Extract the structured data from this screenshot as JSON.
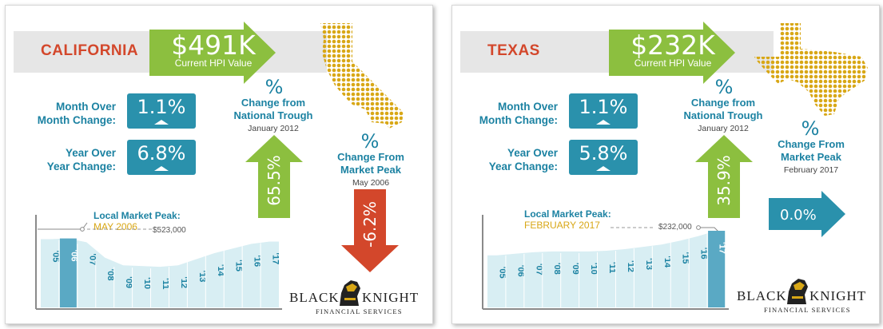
{
  "panels": [
    {
      "state": "CALIFORNIA",
      "hpi_value": "$491K",
      "hpi_label": "Current HPI Value",
      "mom_label_1": "Month Over",
      "mom_label_2": "Month Change:",
      "mom_value": "1.1%",
      "yoy_label_1": "Year Over",
      "yoy_label_2": "Year Change:",
      "yoy_value": "6.8%",
      "trough_symbol": "%",
      "trough_head_1": "Change from",
      "trough_head_2": "National Trough",
      "trough_date": "January 2012",
      "trough_value": "65.5%",
      "peak_symbol": "%",
      "peak_head_1": "Change From",
      "peak_head_2": "Market Peak",
      "peak_date": "May 2006",
      "peak_value": "-6.2%",
      "local_peak_title": "Local Market Peak:",
      "local_peak_date": "MAY 2006",
      "local_peak_value": "$523,000",
      "years": [
        "'05",
        "'06",
        "'07",
        "'08",
        "'09",
        "'10",
        "'11",
        "'12",
        "'13",
        "'14",
        "'15",
        "'16",
        "'17"
      ],
      "relative_levels": [
        0.89,
        0.9,
        0.85,
        0.65,
        0.55,
        0.54,
        0.53,
        0.55,
        0.63,
        0.71,
        0.77,
        0.83,
        0.86
      ],
      "highlight_index": 1,
      "logo_text_a": "BLACK",
      "logo_text_b": "KNIGHT",
      "logo_sub": "FINANCIAL SERVICES"
    },
    {
      "state": "TEXAS",
      "hpi_value": "$232K",
      "hpi_label": "Current HPI Value",
      "mom_label_1": "Month Over",
      "mom_label_2": "Month Change:",
      "mom_value": "1.1%",
      "yoy_label_1": "Year Over",
      "yoy_label_2": "Year Change:",
      "yoy_value": "5.8%",
      "trough_symbol": "%",
      "trough_head_1": "Change from",
      "trough_head_2": "National Trough",
      "trough_date": "January 2012",
      "trough_value": "35.9%",
      "peak_symbol": "%",
      "peak_head_1": "Change From",
      "peak_head_2": "Market Peak",
      "peak_date": "February 2017",
      "peak_value": "0.0%",
      "local_peak_title": "Local Market Peak:",
      "local_peak_date": "FEBRUARY 2017",
      "local_peak_value": "$232,000",
      "years": [
        "'05",
        "'06",
        "'07",
        "'08",
        "'09",
        "'10",
        "'11",
        "'12",
        "'13",
        "'14",
        "'15",
        "'16",
        "'17"
      ],
      "relative_levels": [
        0.68,
        0.7,
        0.72,
        0.73,
        0.73,
        0.73,
        0.74,
        0.76,
        0.79,
        0.82,
        0.87,
        0.93,
        1.0
      ],
      "highlight_index": 12,
      "logo_text_a": "BLACK",
      "logo_text_b": "KNIGHT",
      "logo_sub": "FINANCIAL SERVICES"
    }
  ],
  "colors": {
    "green": "#8cbf3f",
    "teal": "#2a91ac",
    "orange": "#d3472b",
    "gold": "#d8a716",
    "chart_fill": "#d8eef3",
    "chart_highlight": "#5aa9c4"
  },
  "icons": [
    "arrow-right-icon",
    "arrow-up-icon",
    "arrow-down-icon",
    "state-map-icon",
    "knight-logo-icon"
  ]
}
